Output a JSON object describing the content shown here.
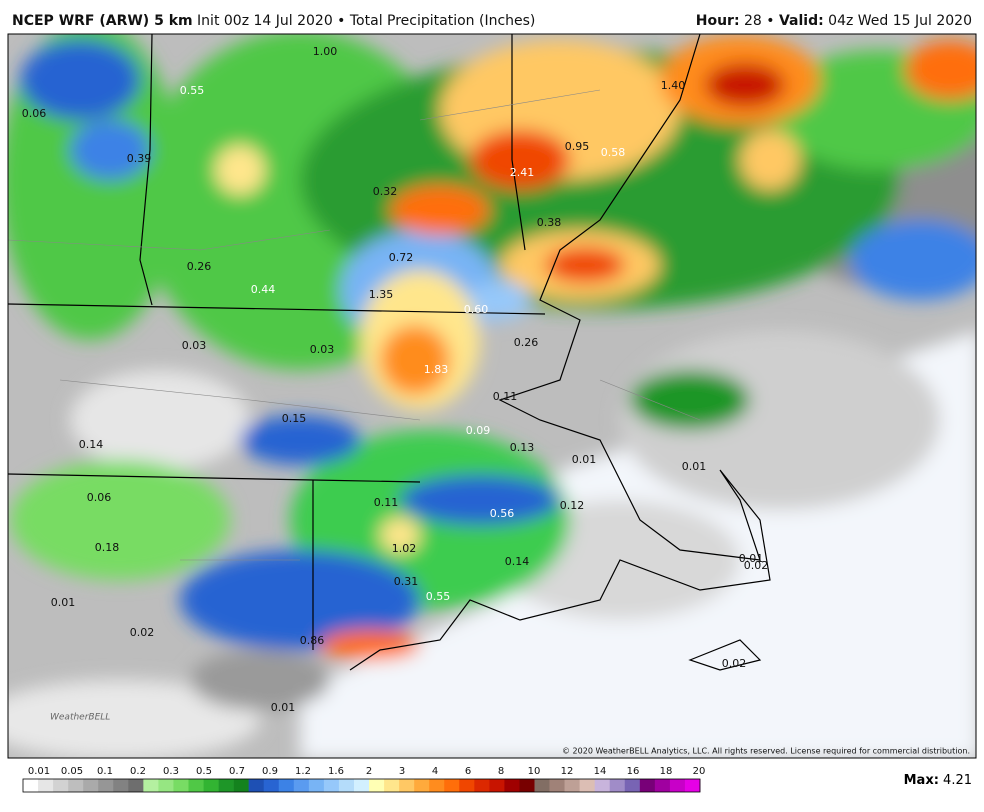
{
  "header": {
    "model": "NCEP WRF (ARW) 5 km",
    "run": "Init 00z 14 Jul 2020 • Total Precipitation (Inches)",
    "hour_label": "Hour:",
    "hour": "28 •",
    "valid_label": "Valid:",
    "valid": "04z Wed 15 Jul 2020"
  },
  "map": {
    "labels": [
      "1.00",
      "0.55",
      "0.06",
      "0.39",
      "1.40",
      "0.95",
      "0.58",
      "2.41",
      "0.32",
      "0.38",
      "0.26",
      "0.72",
      "0.44",
      "1.35",
      "0.60",
      "0.26",
      "0.03",
      "0.03",
      "1.83",
      "0.11",
      "0.15",
      "0.09",
      "0.14",
      "0.13",
      "0.01",
      "0.01",
      "0.06",
      "0.11",
      "0.56",
      "0.12",
      "0.18",
      "1.02",
      "0.01",
      "0.02",
      "0.14",
      "0.31",
      "0.55",
      "0.01",
      "0.02",
      "0.86",
      "0.02",
      "0.01"
    ],
    "logo": "WeatherBELL",
    "copyright": "© 2020 WeatherBELL Analytics, LLC. All rights reserved. License required for commercial distribution."
  },
  "legend": {
    "labels": [
      "0.01",
      "0.05",
      "0.1",
      "0.2",
      "0.3",
      "0.5",
      "0.7",
      "0.9",
      "1.2",
      "1.6",
      "2",
      "3",
      "4",
      "6",
      "8",
      "10",
      "12",
      "14",
      "16",
      "18",
      "20"
    ],
    "max_label": "Max:",
    "max": "4.21"
  }
}
